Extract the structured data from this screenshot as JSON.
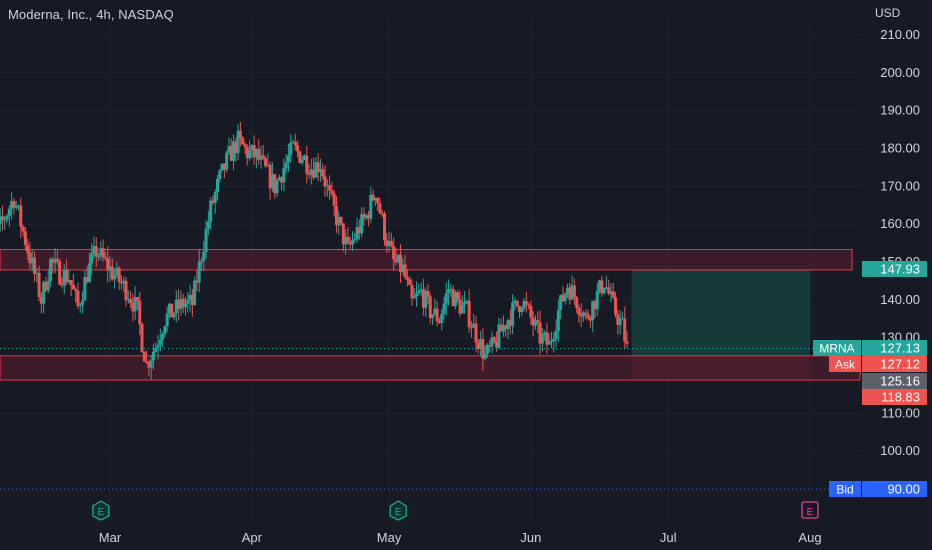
{
  "header": {
    "symbol_title": "Moderna, Inc., 4h, NASDAQ",
    "currency": "USD"
  },
  "colors": {
    "background": "#161a25",
    "up": "#26a69a",
    "down": "#ef5350",
    "grid": "#1f2330",
    "zone_fill": "#4a1e2e",
    "zone_border": "#f23645",
    "target_fill": "#163b3a",
    "stop_fill": "#4a1e2a",
    "label_text": "#d1d4dc",
    "bid_blue": "#2962ff"
  },
  "chart_data": {
    "type": "candlestick",
    "ylim": [
      89,
      214
    ],
    "x_range": [
      "2024-02-02",
      "2024-08-12"
    ],
    "y_ticks": [
      100,
      110,
      120,
      130,
      140,
      150,
      160,
      170,
      180,
      190,
      200,
      210
    ],
    "y_tick_labels": [
      "100.00",
      "110.00",
      "",
      "130.00",
      "140.00",
      "150.00",
      "160.00",
      "170.00",
      "180.00",
      "190.00",
      "200.00",
      "210.00"
    ],
    "x_ticks": [
      {
        "date": "2024-03-01",
        "label": "Mar"
      },
      {
        "date": "2024-04-01",
        "label": "Apr"
      },
      {
        "date": "2024-05-01",
        "label": "May"
      },
      {
        "date": "2024-06-01",
        "label": "Jun"
      },
      {
        "date": "2024-07-01",
        "label": "Jul"
      },
      {
        "date": "2024-08-01",
        "label": "Aug"
      }
    ],
    "path": [
      [
        "2024-02-02",
        165
      ],
      [
        "2024-02-05",
        157
      ],
      [
        "2024-02-07",
        162
      ],
      [
        "2024-02-09",
        167
      ],
      [
        "2024-02-11",
        158
      ],
      [
        "2024-02-13",
        149
      ],
      [
        "2024-02-15",
        140
      ],
      [
        "2024-02-17",
        150
      ],
      [
        "2024-02-19",
        147
      ],
      [
        "2024-02-21",
        146
      ],
      [
        "2024-02-23",
        138
      ],
      [
        "2024-02-25",
        147
      ],
      [
        "2024-02-27",
        153
      ],
      [
        "2024-03-01",
        148
      ],
      [
        "2024-03-03",
        145
      ],
      [
        "2024-03-05",
        142
      ],
      [
        "2024-03-07",
        137
      ],
      [
        "2024-03-08",
        129
      ],
      [
        "2024-03-09",
        123
      ],
      [
        "2024-03-11",
        128
      ],
      [
        "2024-03-13",
        135
      ],
      [
        "2024-03-15",
        137
      ],
      [
        "2024-03-17",
        139
      ],
      [
        "2024-03-19",
        139
      ],
      [
        "2024-03-21",
        152
      ],
      [
        "2024-03-23",
        164
      ],
      [
        "2024-03-25",
        172
      ],
      [
        "2024-03-27",
        178
      ],
      [
        "2024-03-29",
        182
      ],
      [
        "2024-03-31",
        179
      ],
      [
        "2024-04-02",
        178
      ],
      [
        "2024-04-04",
        174
      ],
      [
        "2024-04-06",
        170
      ],
      [
        "2024-04-08",
        175
      ],
      [
        "2024-04-10",
        180
      ],
      [
        "2024-04-12",
        178
      ],
      [
        "2024-04-14",
        175
      ],
      [
        "2024-04-16",
        176
      ],
      [
        "2024-04-18",
        167
      ],
      [
        "2024-04-20",
        160
      ],
      [
        "2024-04-22",
        153
      ],
      [
        "2024-04-24",
        158
      ],
      [
        "2024-04-26",
        162
      ],
      [
        "2024-04-28",
        169
      ],
      [
        "2024-04-30",
        158
      ],
      [
        "2024-05-02",
        150
      ],
      [
        "2024-05-04",
        148
      ],
      [
        "2024-05-06",
        139
      ],
      [
        "2024-05-08",
        142
      ],
      [
        "2024-05-10",
        137
      ],
      [
        "2024-05-12",
        135
      ],
      [
        "2024-05-14",
        143
      ],
      [
        "2024-05-16",
        139
      ],
      [
        "2024-05-18",
        137
      ],
      [
        "2024-05-20",
        131
      ],
      [
        "2024-05-22",
        125
      ],
      [
        "2024-05-24",
        128
      ],
      [
        "2024-05-26",
        133
      ],
      [
        "2024-05-28",
        137
      ],
      [
        "2024-05-30",
        140
      ],
      [
        "2024-06-01",
        135
      ],
      [
        "2024-06-03",
        130
      ],
      [
        "2024-06-05",
        128
      ],
      [
        "2024-06-07",
        137
      ],
      [
        "2024-06-09",
        144
      ],
      [
        "2024-06-11",
        140
      ],
      [
        "2024-06-13",
        135
      ],
      [
        "2024-06-15",
        140
      ],
      [
        "2024-06-17",
        145
      ],
      [
        "2024-06-19",
        138
      ],
      [
        "2024-06-21",
        133
      ],
      [
        "2024-06-22",
        127
      ]
    ],
    "horizontal_zones": [
      {
        "name": "upper-zone",
        "y_low": 147.9,
        "y_high": 153.3,
        "x_start": "2024-02-02",
        "x_end": "2024-08-12"
      },
      {
        "name": "lower-zone",
        "y_low": 118.8,
        "y_high": 125.2,
        "x_start": "2024-02-02",
        "x_end": "2024-08-12"
      }
    ],
    "position_tool": {
      "x_start": "2024-06-23",
      "x_end": "2024-08-01",
      "entry": 125.16,
      "target": 147.93,
      "stop": 118.83
    },
    "current_price_line": 127.13,
    "bid_line": 90.0,
    "earnings_markers": [
      {
        "date": "2024-02-28",
        "label": "E",
        "style": "past"
      },
      {
        "date": "2024-05-03",
        "label": "E",
        "style": "past"
      },
      {
        "date": "2024-08-01",
        "label": "E",
        "style": "future"
      }
    ],
    "price_labels": [
      {
        "name": "target-price-label",
        "value": 147.93,
        "text": "147.93",
        "color": "#26a69a",
        "prefix": ""
      },
      {
        "name": "last-price-label",
        "value": 127.13,
        "text": "127.13",
        "color": "#26a69a",
        "prefix": "MRNA"
      },
      {
        "name": "ask-price-label",
        "value": 127.12,
        "text": "127.12",
        "color": "#ef5350",
        "prefix": "Ask"
      },
      {
        "name": "entry-price-label",
        "value": 125.16,
        "text": "125.16",
        "color": "#5d606b",
        "prefix": ""
      },
      {
        "name": "stop-price-label",
        "value": 118.83,
        "text": "118.83",
        "color": "#ef5350",
        "prefix": ""
      },
      {
        "name": "bid-price-label",
        "value": 90.0,
        "text": "90.00",
        "color": "#2962ff",
        "prefix": "Bid"
      }
    ]
  }
}
